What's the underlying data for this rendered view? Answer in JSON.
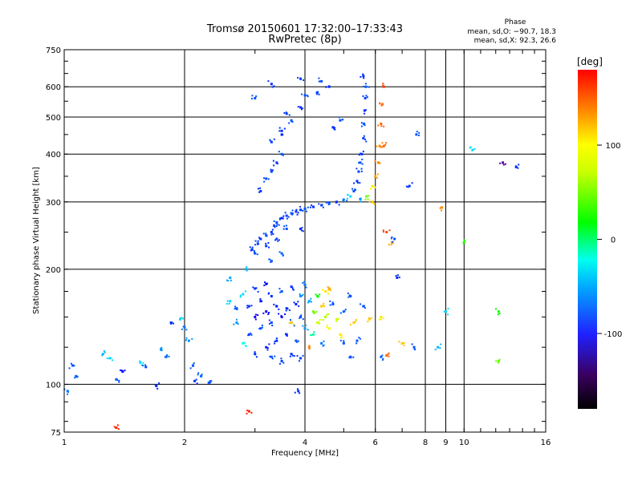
{
  "chart_data": {
    "type": "scatter",
    "title": "Tromsø 20150601 17:32:00–17:33:43",
    "subtitle": "RwPretec (8p)",
    "xlabel": "Frequency [MHz]",
    "ylabel": "Stationary phase Virtual Height [km]",
    "x_scale": "log",
    "y_scale": "log",
    "xlim": [
      1,
      16
    ],
    "ylim": [
      75,
      750
    ],
    "x_ticks": [
      1,
      2,
      4,
      6,
      8,
      9,
      10,
      16
    ],
    "y_ticks": [
      75,
      100,
      200,
      300,
      400,
      500,
      600,
      750
    ],
    "grid": true,
    "stats": {
      "heading": "Phase",
      "line_o": "mean, sd,O: −90.7, 18.3",
      "line_x": "mean, sd,X:  92.3, 26.6"
    },
    "colorbar": {
      "label": "[deg]",
      "ticks": [
        100,
        0,
        -100
      ],
      "range": [
        -180,
        180
      ]
    },
    "series": [
      {
        "points": [
          [
            1.05,
            112,
            -100
          ],
          [
            1.07,
            105,
            -95
          ],
          [
            1.25,
            120,
            -70
          ],
          [
            1.3,
            117,
            -60
          ],
          [
            1.35,
            103,
            -100
          ],
          [
            1.4,
            108,
            -120
          ],
          [
            1.55,
            114,
            -60
          ],
          [
            1.6,
            111,
            -100
          ],
          [
            1.7,
            99,
            -110
          ],
          [
            1.75,
            123,
            -80
          ],
          [
            1.8,
            118,
            -95
          ],
          [
            1.85,
            145,
            -110
          ],
          [
            1.95,
            148,
            -60
          ],
          [
            2.0,
            141,
            -90
          ],
          [
            2.05,
            130,
            -80
          ],
          [
            2.1,
            112,
            -100
          ],
          [
            2.12,
            102,
            -110
          ],
          [
            2.2,
            105,
            -95
          ],
          [
            2.3,
            101,
            -100
          ],
          [
            2.6,
            165,
            -60
          ],
          [
            2.6,
            190,
            -75
          ],
          [
            2.7,
            158,
            -100
          ],
          [
            2.7,
            145,
            -80
          ],
          [
            2.8,
            172,
            -60
          ],
          [
            2.8,
            128,
            -40
          ],
          [
            2.9,
            160,
            -110
          ],
          [
            2.9,
            135,
            -105
          ],
          [
            3.0,
            178,
            -110
          ],
          [
            3.0,
            150,
            -130
          ],
          [
            3.0,
            120,
            -110
          ],
          [
            3.1,
            165,
            -115
          ],
          [
            3.1,
            140,
            -100
          ],
          [
            3.2,
            183,
            -120
          ],
          [
            3.2,
            155,
            -125
          ],
          [
            3.2,
            125,
            -115
          ],
          [
            3.3,
            170,
            -110
          ],
          [
            3.3,
            145,
            -105
          ],
          [
            3.3,
            118,
            -100
          ],
          [
            3.4,
            160,
            -115
          ],
          [
            3.4,
            130,
            -110
          ],
          [
            3.5,
            175,
            -100
          ],
          [
            3.5,
            150,
            -120
          ],
          [
            3.5,
            115,
            -105
          ],
          [
            3.6,
            158,
            -110
          ],
          [
            3.6,
            135,
            -115
          ],
          [
            3.7,
            180,
            -110
          ],
          [
            3.7,
            145,
            -100
          ],
          [
            3.7,
            120,
            -110
          ],
          [
            3.8,
            162,
            -115
          ],
          [
            3.8,
            130,
            -100
          ],
          [
            3.9,
            170,
            -80
          ],
          [
            3.9,
            150,
            -100
          ],
          [
            3.9,
            117,
            -105
          ],
          [
            4.0,
            182,
            -90
          ],
          [
            4.0,
            140,
            -80
          ],
          [
            4.1,
            165,
            -75
          ],
          [
            4.2,
            155,
            60
          ],
          [
            4.2,
            135,
            -20
          ],
          [
            4.3,
            170,
            30
          ],
          [
            4.3,
            145,
            90
          ],
          [
            4.4,
            160,
            120
          ],
          [
            4.4,
            128,
            -90
          ],
          [
            4.5,
            150,
            80
          ],
          [
            4.5,
            175,
            110
          ],
          [
            4.6,
            140,
            100
          ],
          [
            4.7,
            162,
            -100
          ],
          [
            4.8,
            148,
            90
          ],
          [
            4.9,
            135,
            110
          ],
          [
            5.0,
            155,
            -95
          ],
          [
            5.0,
            128,
            -100
          ],
          [
            5.2,
            170,
            -100
          ],
          [
            5.3,
            145,
            120
          ],
          [
            5.4,
            130,
            -100
          ],
          [
            5.6,
            160,
            -100
          ],
          [
            5.8,
            148,
            120
          ],
          [
            6.2,
            150,
            110
          ],
          [
            6.2,
            118,
            -95
          ],
          [
            6.4,
            119,
            150
          ],
          [
            7.0,
            128,
            120
          ],
          [
            7.5,
            125,
            -100
          ],
          [
            3.7,
            145,
            120
          ],
          [
            4.1,
            125,
            140
          ],
          [
            4.6,
            178,
            130
          ],
          [
            5.2,
            118,
            -100
          ],
          [
            2.95,
            225,
            -110
          ],
          [
            3.0,
            220,
            -100
          ],
          [
            3.05,
            233,
            -105
          ],
          [
            3.1,
            240,
            -110
          ],
          [
            3.2,
            245,
            -100
          ],
          [
            3.3,
            250,
            -110
          ],
          [
            3.35,
            260,
            -105
          ],
          [
            3.4,
            265,
            -100
          ],
          [
            3.5,
            272,
            -110
          ],
          [
            3.6,
            276,
            -105
          ],
          [
            3.7,
            280,
            -100
          ],
          [
            3.8,
            283,
            -110
          ],
          [
            3.9,
            286,
            -105
          ],
          [
            4.0,
            288,
            -100
          ],
          [
            4.2,
            291,
            -110
          ],
          [
            4.4,
            294,
            -105
          ],
          [
            4.6,
            297,
            -100
          ],
          [
            4.8,
            300,
            -110
          ],
          [
            5.0,
            304,
            -90
          ],
          [
            5.2,
            310,
            -60
          ],
          [
            5.3,
            320,
            -100
          ],
          [
            5.4,
            340,
            -110
          ],
          [
            5.45,
            360,
            -105
          ],
          [
            5.5,
            380,
            -100
          ],
          [
            5.55,
            400,
            -110
          ],
          [
            5.6,
            440,
            -105
          ],
          [
            5.62,
            480,
            -100
          ],
          [
            5.64,
            520,
            -110
          ],
          [
            5.66,
            560,
            -105
          ],
          [
            5.68,
            600,
            -100
          ],
          [
            5.6,
            640,
            -110
          ],
          [
            3.2,
            230,
            -110
          ],
          [
            3.4,
            240,
            -105
          ],
          [
            3.6,
            255,
            -100
          ],
          [
            3.3,
            210,
            -100
          ],
          [
            3.5,
            220,
            -95
          ],
          [
            5.5,
            305,
            -80
          ],
          [
            5.7,
            310,
            60
          ],
          [
            5.9,
            330,
            110
          ],
          [
            6.0,
            350,
            130
          ],
          [
            6.1,
            380,
            140
          ],
          [
            6.15,
            420,
            140
          ],
          [
            6.2,
            480,
            150
          ],
          [
            6.25,
            540,
            150
          ],
          [
            6.3,
            600,
            160
          ],
          [
            5.9,
            300,
            120
          ],
          [
            3.1,
            320,
            -110
          ],
          [
            3.2,
            345,
            -100
          ],
          [
            3.3,
            360,
            -105
          ],
          [
            3.4,
            380,
            -110
          ],
          [
            3.5,
            400,
            -100
          ],
          [
            3.3,
            430,
            -105
          ],
          [
            3.5,
            460,
            -110
          ],
          [
            3.7,
            490,
            -100
          ],
          [
            3.6,
            510,
            -105
          ],
          [
            3.9,
            530,
            -110
          ],
          [
            4.0,
            570,
            -100
          ],
          [
            4.3,
            580,
            -105
          ],
          [
            4.6,
            600,
            -110
          ],
          [
            4.4,
            620,
            -100
          ],
          [
            4.7,
            470,
            -110
          ],
          [
            4.9,
            490,
            -100
          ],
          [
            3.0,
            560,
            -100
          ],
          [
            3.3,
            610,
            -110
          ],
          [
            3.9,
            630,
            -105
          ],
          [
            3.5,
            450,
            -110
          ],
          [
            6.3,
            420,
            150
          ],
          [
            6.4,
            250,
            160
          ],
          [
            6.6,
            235,
            130
          ],
          [
            6.8,
            190,
            -110
          ],
          [
            7.3,
            330,
            -110
          ],
          [
            7.6,
            450,
            -100
          ],
          [
            8.8,
            290,
            140
          ],
          [
            9.0,
            155,
            -60
          ],
          [
            10.0,
            235,
            40
          ],
          [
            10.5,
            410,
            -60
          ],
          [
            12.5,
            380,
            -150
          ],
          [
            13.5,
            370,
            -110
          ],
          [
            8.6,
            125,
            -70
          ],
          [
            12.2,
            115,
            60
          ],
          [
            12.2,
            155,
            30
          ],
          [
            3.9,
            255,
            -110
          ],
          [
            2.85,
            200,
            -70
          ],
          [
            2.9,
            85,
            170
          ],
          [
            1.35,
            77,
            170
          ],
          [
            3.85,
            96,
            -110
          ],
          [
            1.02,
            96,
            -90
          ],
          [
            6.7,
            240,
            -100
          ]
        ]
      }
    ]
  }
}
